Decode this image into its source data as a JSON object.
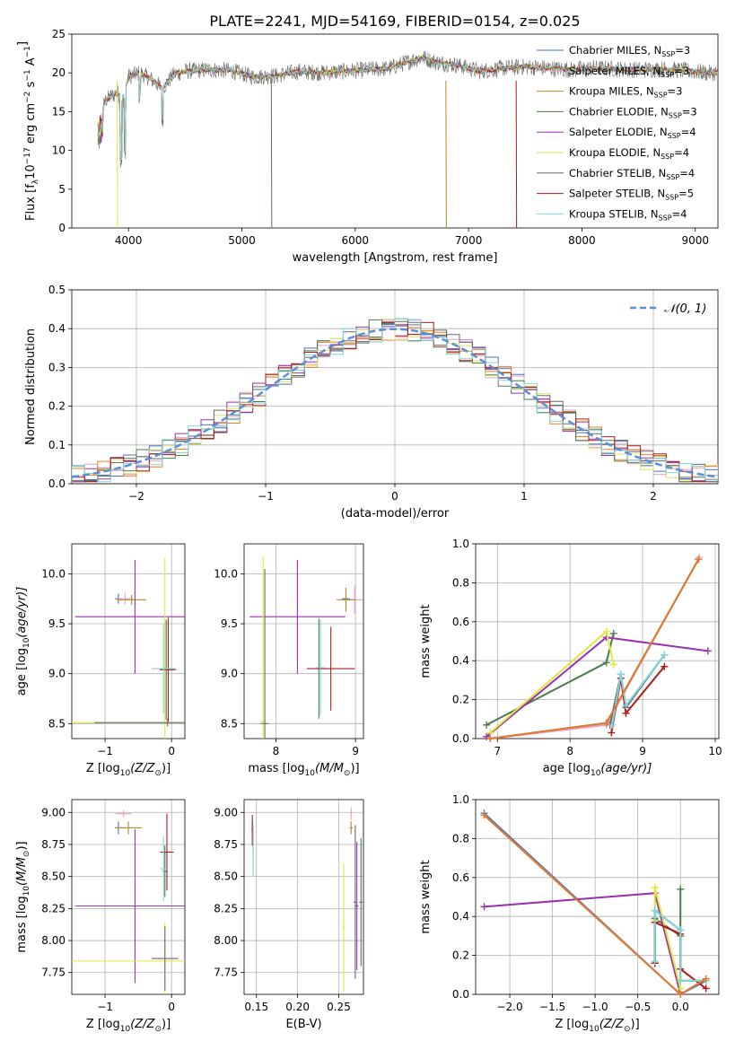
{
  "figure": {
    "title": "PLATE=2241, MJD=54169, FIBERID=0154, z=0.025"
  },
  "series_styles": [
    {
      "name": "Chabrier MILES",
      "nssp": "3",
      "color": "#4a72b8"
    },
    {
      "name": "Salpeter MILES",
      "nssp": "3",
      "color": "#e5a3c5"
    },
    {
      "name": "Kroupa MILES",
      "nssp": "3",
      "color": "#b08a24"
    },
    {
      "name": "Chabrier ELODIE",
      "nssp": "3",
      "color": "#4d7a4d"
    },
    {
      "name": "Salpeter ELODIE",
      "nssp": "4",
      "color": "#9b30b0"
    },
    {
      "name": "Kroupa ELODIE",
      "nssp": "4",
      "color": "#dfe83a"
    },
    {
      "name": "Chabrier STELIB",
      "nssp": "4",
      "color": "#6a6a6a"
    },
    {
      "name": "Salpeter STELIB",
      "nssp": "5",
      "color": "#b01a1a"
    },
    {
      "name": "Kroupa STELIB",
      "nssp": "4",
      "color": "#7fd6d9"
    }
  ],
  "chart_data": [
    {
      "id": "spectrum",
      "type": "line",
      "xlabel": "wavelength [Angstrom, rest frame]",
      "ylabel": "Flux [f",
      "ylabel_sub": "λ",
      "ylabel_mid": "10",
      "ylabel_sup": "−17",
      "ylabel_tail": " erg cm",
      "ylabel_sup2": "−2",
      "ylabel_tail2": " s",
      "ylabel_sup3": "−1",
      "ylabel_tail3": " A",
      "ylabel_sup4": "−1",
      "ylabel_end": "]",
      "xlim": [
        3500,
        9200
      ],
      "ylim": [
        0,
        25
      ],
      "xticks": [
        4000,
        5000,
        6000,
        7000,
        8000,
        9000
      ],
      "yticks": [
        0,
        5,
        10,
        15,
        20,
        25
      ],
      "grid": false,
      "legend_position": "top-right",
      "spectrum_samples": {
        "x": [
          3750,
          3800,
          3900,
          3950,
          4000,
          4100,
          4200,
          4300,
          4400,
          4500,
          4700,
          4900,
          5100,
          5300,
          5500,
          5700,
          5900,
          6100,
          6300,
          6500,
          6600,
          6700,
          6900,
          7100,
          7300,
          7500,
          7700,
          7900,
          8100,
          8300,
          8500,
          8700,
          8900,
          9100
        ],
        "y": [
          14.5,
          16.5,
          17.5,
          16.5,
          19.5,
          20.0,
          19.2,
          18.0,
          19.8,
          20.2,
          20.4,
          20.3,
          19.5,
          19.6,
          20.2,
          20.0,
          20.2,
          20.4,
          20.6,
          21.6,
          22.0,
          21.4,
          21.0,
          20.2,
          20.6,
          20.8,
          20.6,
          20.4,
          20.6,
          20.5,
          20.4,
          20.5,
          20.3,
          20.0
        ]
      }
    },
    {
      "id": "residuals",
      "type": "bar",
      "xlabel": "(data-model)/error",
      "ylabel": "Normed distribution",
      "xlim": [
        -2.5,
        2.5
      ],
      "ylim": [
        0,
        0.5
      ],
      "xticks": [
        -2,
        -1,
        0,
        1,
        2
      ],
      "yticks": [
        0.0,
        0.1,
        0.2,
        0.3,
        0.4,
        0.5
      ],
      "grid": true,
      "legend_position": "top-right",
      "reference_curve": {
        "name": "N(0,1)",
        "mean": 0,
        "sigma": 1
      },
      "bin_width": 0.1
    },
    {
      "id": "z-vs-age",
      "type": "scatter",
      "xlabel": "Z [log",
      "xlabel_sub": "10",
      "xlabel_math": "(Z/Z",
      "xlabel_sub2": "⊙",
      "xlabel_end": ")]",
      "ylabel": "age  [log",
      "ylabel_sub": "10",
      "ylabel_math": "(age/yr)]",
      "xlim": [
        -1.5,
        0.2
      ],
      "ylim": [
        8.35,
        10.3
      ],
      "xticks": [
        -1,
        0
      ],
      "yticks": [
        8.5,
        9.0,
        9.5,
        10.0
      ],
      "grid": true,
      "points": [
        {
          "series": 0,
          "x": -0.8,
          "xerr": 0.05,
          "y": 9.75,
          "yerr": 0.05
        },
        {
          "series": 1,
          "x": -0.7,
          "xerr": 0.12,
          "y": 9.75,
          "yerr": 0.06
        },
        {
          "series": 2,
          "x": -0.6,
          "xerr": 0.22,
          "y": 9.74,
          "yerr": 0.05
        },
        {
          "series": 3,
          "x": -0.08,
          "xerr": 0.1,
          "y": 9.04,
          "yerr": 0.5
        },
        {
          "series": 4,
          "x": -0.55,
          "xerr": 0.9,
          "y": 9.57,
          "yerr": 0.57
        },
        {
          "series": 5,
          "x": -0.1,
          "xerr": 1.4,
          "y": 8.51,
          "yerr": 1.65
        },
        {
          "series": 6,
          "x": -0.06,
          "xerr": 1.1,
          "y": 8.51,
          "yerr": 0.04
        },
        {
          "series": 7,
          "x": -0.05,
          "xerr": 0.12,
          "y": 9.04,
          "yerr": 0.52
        },
        {
          "series": 8,
          "x": -0.12,
          "xerr": 0.18,
          "y": 9.05,
          "yerr": 0.45
        }
      ]
    },
    {
      "id": "mass-vs-age",
      "type": "scatter",
      "xlabel": "mass [log",
      "xlabel_sub": "10",
      "xlabel_math": "(M/M",
      "xlabel_sub2": "⊙",
      "xlabel_end": ")]",
      "xlim": [
        7.6,
        9.1
      ],
      "ylim": [
        8.35,
        10.3
      ],
      "xticks": [
        8,
        9
      ],
      "yticks": [
        8.5,
        9.0,
        9.5,
        10.0
      ],
      "grid": true,
      "points": [
        {
          "series": 0,
          "x": 8.88,
          "xerr": 0.05,
          "y": 9.75,
          "yerr": 0.06
        },
        {
          "series": 1,
          "x": 8.99,
          "xerr": 0.1,
          "y": 9.74,
          "yerr": 0.14
        },
        {
          "series": 2,
          "x": 8.88,
          "xerr": 0.12,
          "y": 9.74,
          "yerr": 0.12
        },
        {
          "series": 3,
          "x": 8.54,
          "xerr": 0.02,
          "y": 9.05,
          "yerr": 0.5
        },
        {
          "series": 4,
          "x": 8.27,
          "xerr": 0.6,
          "y": 9.57,
          "yerr": 0.57
        },
        {
          "series": 5,
          "x": 7.84,
          "xerr": 0.04,
          "y": 8.52,
          "yerr": 1.65
        },
        {
          "series": 6,
          "x": 7.86,
          "xerr": 0.05,
          "y": 8.5,
          "yerr": 1.55
        },
        {
          "series": 7,
          "x": 8.69,
          "xerr": 0.3,
          "y": 9.05,
          "yerr": 0.42
        },
        {
          "series": 8,
          "x": 8.56,
          "xerr": 0.05,
          "y": 9.06,
          "yerr": 0.48
        }
      ]
    },
    {
      "id": "age-vs-weight",
      "type": "line",
      "xlabel": "age  [log",
      "xlabel_sub": "10",
      "xlabel_math": "(age/yr)]",
      "ylabel": "mass weight",
      "xlim": [
        6.7,
        10.05
      ],
      "ylim": [
        0,
        1.0
      ],
      "xticks": [
        7,
        8,
        9,
        10
      ],
      "yticks": [
        0.0,
        0.2,
        0.4,
        0.6,
        0.8,
        1.0
      ],
      "grid": true,
      "series": [
        {
          "series": 0,
          "x": [
            6.9,
            8.5,
            9.77
          ],
          "y": [
            0.0,
            0.08,
            0.92
          ]
        },
        {
          "series": 1,
          "x": [
            6.9,
            8.5,
            9.78
          ],
          "y": [
            0.0,
            0.07,
            0.93
          ]
        },
        {
          "series": 2,
          "x": [
            6.9,
            8.5,
            9.77
          ],
          "y": [
            0.0,
            0.08,
            0.92
          ]
        },
        {
          "series": 3,
          "x": [
            6.85,
            8.5,
            8.6
          ],
          "y": [
            0.07,
            0.39,
            0.54
          ]
        },
        {
          "series": 4,
          "x": [
            6.85,
            8.5,
            9.9
          ],
          "y": [
            0.01,
            0.52,
            0.45
          ]
        },
        {
          "series": 5,
          "x": [
            6.9,
            8.5,
            8.6
          ],
          "y": [
            0.03,
            0.55,
            0.38
          ]
        },
        {
          "series": 6,
          "x": [
            8.55,
            8.7,
            8.77,
            9.3
          ],
          "y": [
            0.07,
            0.33,
            0.16,
            0.43
          ]
        },
        {
          "series": 7,
          "x": [
            8.57,
            8.7,
            8.77,
            9.3
          ],
          "y": [
            0.03,
            0.31,
            0.13,
            0.37
          ]
        },
        {
          "series": 8,
          "x": [
            8.58,
            8.7,
            8.77,
            9.3
          ],
          "y": [
            0.07,
            0.33,
            0.17,
            0.43
          ]
        }
      ]
    },
    {
      "id": "z-vs-mass",
      "type": "scatter",
      "xlabel": "Z [log",
      "xlabel_sub": "10",
      "xlabel_math": "(Z/Z",
      "xlabel_sub2": "⊙",
      "xlabel_end": ")]",
      "ylabel": "mass [log",
      "ylabel_sub": "10",
      "ylabel_math": "(M/M",
      "ylabel_sub2": "⊙",
      "ylabel_end": ")]",
      "xlim": [
        -1.5,
        0.2
      ],
      "ylim": [
        7.58,
        9.1
      ],
      "xticks": [
        -1,
        0
      ],
      "yticks": [
        7.75,
        8.0,
        8.25,
        8.5,
        8.75,
        9.0
      ],
      "grid": true,
      "points": [
        {
          "series": 0,
          "x": -0.8,
          "xerr": 0.05,
          "y": 8.88,
          "yerr": 0.05
        },
        {
          "series": 1,
          "x": -0.72,
          "xerr": 0.12,
          "y": 8.99,
          "yerr": 0.03
        },
        {
          "series": 2,
          "x": -0.65,
          "xerr": 0.2,
          "y": 8.88,
          "yerr": 0.05
        },
        {
          "series": 3,
          "x": -0.1,
          "xerr": 0.04,
          "y": 8.54,
          "yerr": 0.2
        },
        {
          "series": 4,
          "x": -0.55,
          "xerr": 0.9,
          "y": 8.27,
          "yerr": 0.6
        },
        {
          "series": 5,
          "x": -0.1,
          "xerr": 1.4,
          "y": 7.84,
          "yerr": 0.3
        },
        {
          "series": 6,
          "x": -0.1,
          "xerr": 0.2,
          "y": 7.86,
          "yerr": 0.25
        },
        {
          "series": 7,
          "x": -0.07,
          "xerr": 0.1,
          "y": 8.69,
          "yerr": 0.3
        },
        {
          "series": 8,
          "x": -0.12,
          "xerr": 0.05,
          "y": 8.56,
          "yerr": 0.25
        }
      ]
    },
    {
      "id": "ebv-vs-mass",
      "type": "scatter",
      "xlabel": "E(B-V)",
      "xlim": [
        0.135,
        0.28
      ],
      "ylim": [
        7.58,
        9.1
      ],
      "xticks": [
        0.15,
        0.2,
        0.25
      ],
      "yticks": [
        7.75,
        8.0,
        8.25,
        8.5,
        8.75,
        9.0
      ],
      "grid": true,
      "points": [
        {
          "series": 0,
          "x": 0.145,
          "xerr": 0.001,
          "y": 8.88,
          "yerr": 0.05
        },
        {
          "series": 1,
          "x": 0.265,
          "xerr": 0.001,
          "y": 8.99,
          "yerr": 0.05
        },
        {
          "series": 2,
          "x": 0.265,
          "xerr": 0.002,
          "y": 8.88,
          "yerr": 0.05
        },
        {
          "series": 3,
          "x": 0.277,
          "xerr": 0.002,
          "y": 8.3,
          "yerr": 0.5
        },
        {
          "series": 4,
          "x": 0.272,
          "xerr": 0.002,
          "y": 8.27,
          "yerr": 0.5
        },
        {
          "series": 5,
          "x": 0.256,
          "xerr": 0.002,
          "y": 8.1,
          "yerr": 0.5
        },
        {
          "series": 6,
          "x": 0.27,
          "xerr": 0.002,
          "y": 8.3,
          "yerr": 0.6
        },
        {
          "series": 7,
          "x": 0.145,
          "xerr": 0.001,
          "y": 8.86,
          "yerr": 0.12
        },
        {
          "series": 8,
          "x": 0.146,
          "xerr": 0.001,
          "y": 8.7,
          "yerr": 0.2
        }
      ]
    },
    {
      "id": "z-vs-weight",
      "type": "line",
      "xlabel": "Z [log",
      "xlabel_sub": "10",
      "xlabel_math": "(Z/Z",
      "xlabel_sub2": "⊙",
      "xlabel_end": ")]",
      "ylabel": "mass weight",
      "xlim": [
        -2.4,
        0.45
      ],
      "ylim": [
        0,
        1.0
      ],
      "xticks": [
        -2.0,
        -1.5,
        -1.0,
        -0.5,
        0.0
      ],
      "yticks": [
        0.0,
        0.2,
        0.4,
        0.6,
        0.8,
        1.0
      ],
      "grid": true,
      "series": [
        {
          "series": 0,
          "x": [
            -2.3,
            0.0,
            0.3
          ],
          "y": [
            0.93,
            0.0,
            0.07
          ]
        },
        {
          "series": 1,
          "x": [
            -2.3,
            0.0,
            0.3
          ],
          "y": [
            0.92,
            0.0,
            0.08
          ]
        },
        {
          "series": 2,
          "x": [
            -2.3,
            0.0,
            0.3
          ],
          "y": [
            0.92,
            0.0,
            0.08
          ]
        },
        {
          "series": 3,
          "x": [
            -0.3,
            -0.3,
            0.0,
            0.0
          ],
          "y": [
            0.16,
            0.39,
            0.3,
            0.54
          ]
        },
        {
          "series": 4,
          "x": [
            -2.3,
            -0.3,
            0.0,
            0.0
          ],
          "y": [
            0.45,
            0.52,
            0.0,
            0.01
          ]
        },
        {
          "series": 5,
          "x": [
            -0.3,
            -0.3,
            0.0,
            0.0
          ],
          "y": [
            0.38,
            0.55,
            0.03,
            0.0
          ]
        },
        {
          "series": 6,
          "x": [
            -0.3,
            -0.3,
            0.0,
            0.0,
            0.3
          ],
          "y": [
            0.16,
            0.43,
            0.33,
            0.07,
            0.07
          ]
        },
        {
          "series": 7,
          "x": [
            -0.3,
            -0.3,
            0.0,
            0.0,
            0.3
          ],
          "y": [
            0.16,
            0.37,
            0.31,
            0.13,
            0.03
          ]
        },
        {
          "series": 8,
          "x": [
            -0.3,
            -0.3,
            0.0,
            0.0,
            0.3
          ],
          "y": [
            0.17,
            0.43,
            0.33,
            0.07,
            0.07
          ]
        }
      ]
    }
  ]
}
